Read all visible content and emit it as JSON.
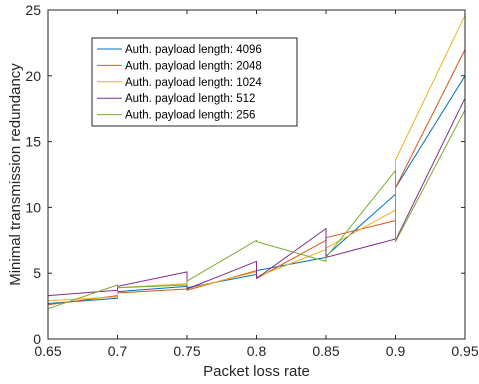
{
  "chart_data": {
    "type": "line",
    "xlabel": "Packet loss rate",
    "ylabel": "Minimal transmission redundancy",
    "xlim": [
      0.65,
      0.95
    ],
    "ylim": [
      0,
      25
    ],
    "xticks": [
      "0.65",
      "0.7",
      "0.75",
      "0.8",
      "0.85",
      "0.9",
      "0.95"
    ],
    "yticks": [
      "0",
      "5",
      "10",
      "15",
      "20",
      "25"
    ],
    "grid": false,
    "legend_position": "top-left",
    "series": [
      {
        "name": "Auth. payload length: 4096",
        "color": "#0072BD",
        "points": [
          [
            0.65,
            2.7
          ],
          [
            0.7,
            3.1
          ],
          [
            0.7,
            3.6
          ],
          [
            0.75,
            4.0
          ],
          [
            0.75,
            3.9
          ],
          [
            0.8,
            4.9
          ],
          [
            0.8,
            5.2
          ],
          [
            0.85,
            6.2
          ],
          [
            0.85,
            6.3
          ],
          [
            0.9,
            11.0
          ],
          [
            0.9,
            11.5
          ],
          [
            0.95,
            20.0
          ],
          [
            0.95,
            20.6
          ]
        ]
      },
      {
        "name": "Auth. payload length: 2048",
        "color": "#D95319",
        "points": [
          [
            0.65,
            2.6
          ],
          [
            0.7,
            3.3
          ],
          [
            0.7,
            3.5
          ],
          [
            0.75,
            3.8
          ],
          [
            0.75,
            3.7
          ],
          [
            0.8,
            5.2
          ],
          [
            0.8,
            4.6
          ],
          [
            0.85,
            7.5
          ],
          [
            0.85,
            7.7
          ],
          [
            0.9,
            9.0
          ],
          [
            0.9,
            11.5
          ],
          [
            0.95,
            22.0
          ],
          [
            0.95,
            20.2
          ]
        ]
      },
      {
        "name": "Auth. payload length: 1024",
        "color": "#EDB120",
        "points": [
          [
            0.65,
            2.9
          ],
          [
            0.7,
            3.2
          ],
          [
            0.7,
            3.9
          ],
          [
            0.75,
            4.2
          ],
          [
            0.75,
            3.8
          ],
          [
            0.8,
            5.1
          ],
          [
            0.8,
            4.7
          ],
          [
            0.85,
            6.8
          ],
          [
            0.85,
            6.9
          ],
          [
            0.9,
            9.8
          ],
          [
            0.9,
            13.6
          ],
          [
            0.95,
            24.6
          ],
          [
            0.95,
            20.9
          ]
        ]
      },
      {
        "name": "Auth. payload length: 512",
        "color": "#7E2F8E",
        "points": [
          [
            0.65,
            3.3
          ],
          [
            0.7,
            3.7
          ],
          [
            0.7,
            4.0
          ],
          [
            0.75,
            5.1
          ],
          [
            0.75,
            3.8
          ],
          [
            0.8,
            5.9
          ],
          [
            0.8,
            4.6
          ],
          [
            0.85,
            8.4
          ],
          [
            0.85,
            6.2
          ],
          [
            0.9,
            7.6
          ],
          [
            0.9,
            7.5
          ],
          [
            0.95,
            18.3
          ],
          [
            0.95,
            16.7
          ]
        ]
      },
      {
        "name": "Auth. payload length: 256",
        "color": "#77AC30",
        "points": [
          [
            0.65,
            2.3
          ],
          [
            0.7,
            4.1
          ],
          [
            0.7,
            3.9
          ],
          [
            0.75,
            4.1
          ],
          [
            0.75,
            4.4
          ],
          [
            0.8,
            7.5
          ],
          [
            0.8,
            7.4
          ],
          [
            0.85,
            5.9
          ],
          [
            0.85,
            6.2
          ],
          [
            0.9,
            12.8
          ],
          [
            0.9,
            7.4
          ],
          [
            0.95,
            17.4
          ],
          [
            0.95,
            23.5
          ]
        ]
      }
    ]
  }
}
